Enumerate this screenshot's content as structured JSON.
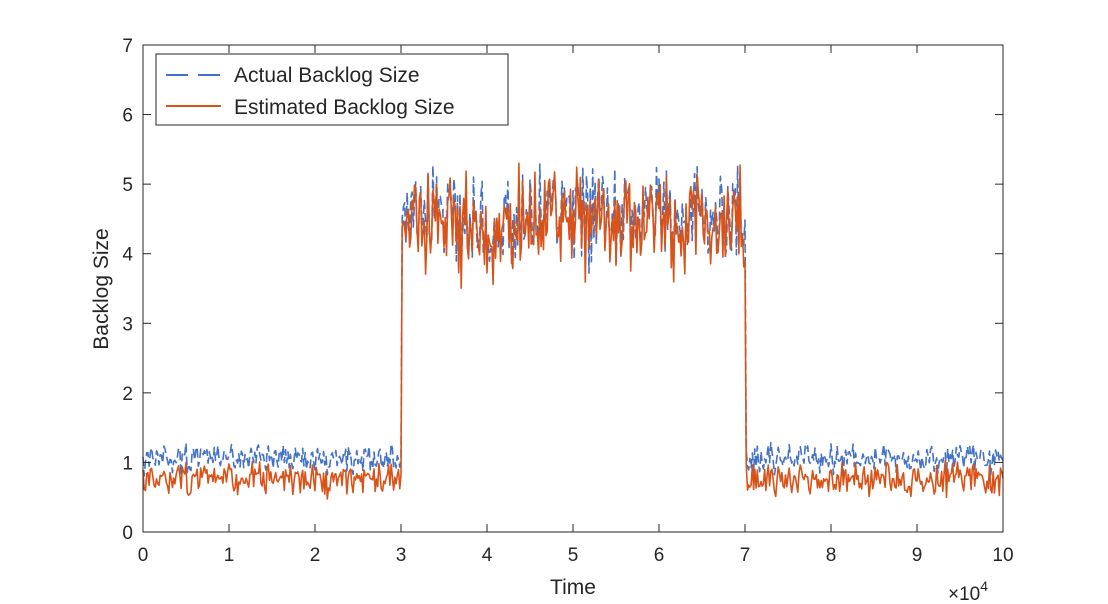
{
  "chart_data": {
    "type": "line",
    "title": "",
    "xlabel": "Time",
    "ylabel": "Backlog Size",
    "x_multiplier_label": "×10",
    "x_multiplier_exponent": "4",
    "xlim": [
      0,
      10
    ],
    "ylim": [
      0,
      7
    ],
    "x_ticks": [
      "0",
      "1",
      "2",
      "3",
      "4",
      "5",
      "6",
      "7",
      "8",
      "9",
      "10"
    ],
    "y_ticks": [
      "0",
      "1",
      "2",
      "3",
      "4",
      "5",
      "6",
      "7"
    ],
    "grid": false,
    "legend_position": "top-left",
    "series": [
      {
        "name": "Actual Backlog Size",
        "style": "dashed",
        "color": "#4472C4",
        "segments": [
          {
            "x_range": [
              0,
              3.0
            ],
            "mean": 1.05,
            "spread": 0.18
          },
          {
            "x_range": [
              3.0,
              7.0
            ],
            "mean": 4.5,
            "spread": 0.62
          },
          {
            "x_range": [
              7.0,
              10
            ],
            "mean": 1.05,
            "spread": 0.18
          }
        ]
      },
      {
        "name": "Estimated Backlog Size",
        "style": "solid",
        "color": "#D95319",
        "segments": [
          {
            "x_range": [
              0,
              3.0
            ],
            "mean": 0.75,
            "spread": 0.2
          },
          {
            "x_range": [
              3.0,
              7.0
            ],
            "mean": 4.4,
            "spread": 0.65
          },
          {
            "x_range": [
              7.0,
              10
            ],
            "mean": 0.75,
            "spread": 0.2
          }
        ]
      }
    ]
  }
}
